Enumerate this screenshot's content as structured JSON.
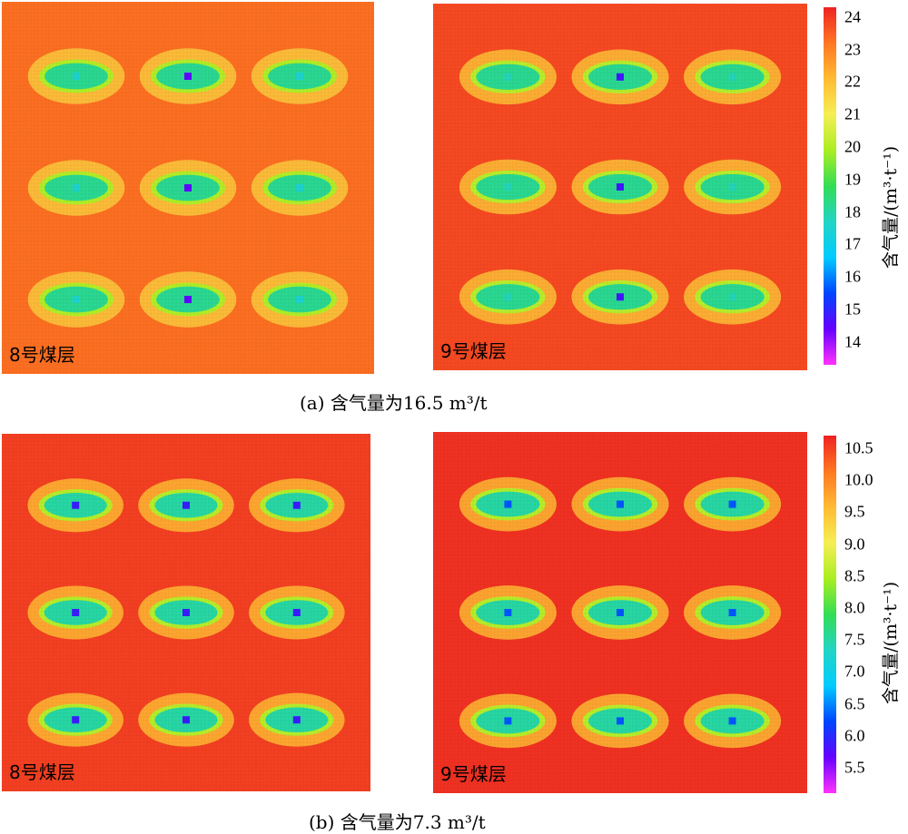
{
  "chart_data": [
    {
      "type": "heatmap",
      "panel": "a-left",
      "label": "8号煤层",
      "background_level": 23.3,
      "halo_level": 21.8,
      "ellipse_level": 18.2,
      "center_levels": [
        [
          17.5,
          14.5,
          17.5
        ],
        [
          17.5,
          14.5,
          17.5
        ],
        [
          17.5,
          14.5,
          17.5
        ]
      ],
      "value_range": [
        13.3,
        24.3
      ]
    },
    {
      "type": "heatmap",
      "panel": "a-right",
      "label": "9号煤层",
      "background_level": 23.8,
      "halo_level": 22.0,
      "ellipse_level": 18.2,
      "center_levels": [
        [
          17.8,
          14.8,
          17.8
        ],
        [
          17.8,
          14.8,
          17.8
        ],
        [
          17.8,
          14.8,
          17.8
        ]
      ],
      "value_range": [
        13.3,
        24.3
      ]
    },
    {
      "type": "heatmap",
      "panel": "b-left",
      "label": "8号煤层",
      "background_level": 10.5,
      "halo_level": 9.6,
      "ellipse_level": 7.5,
      "center_levels": [
        [
          5.9,
          5.9,
          5.9
        ],
        [
          5.9,
          5.9,
          5.9
        ],
        [
          5.9,
          5.9,
          5.9
        ]
      ],
      "value_range": [
        5.1,
        10.7
      ]
    },
    {
      "type": "heatmap",
      "panel": "b-right",
      "label": "9号煤层",
      "background_level": 10.6,
      "halo_level": 9.6,
      "ellipse_level": 7.5,
      "center_levels": [
        [
          6.3,
          6.3,
          6.3
        ],
        [
          6.3,
          6.3,
          6.3
        ],
        [
          6.3,
          6.3,
          6.3
        ]
      ],
      "value_range": [
        5.1,
        10.7
      ]
    }
  ],
  "colorbars": {
    "a": {
      "ticks": [
        "24",
        "23",
        "22",
        "21",
        "20",
        "19",
        "18",
        "17",
        "16",
        "15",
        "14"
      ],
      "tick_values": [
        24,
        23,
        22,
        21,
        20,
        19,
        18,
        17,
        16,
        15,
        14
      ],
      "range": [
        13.3,
        24.3
      ],
      "label": "含气量/(m³·t⁻¹)"
    },
    "b": {
      "ticks": [
        "10.5",
        "10.0",
        "9.5",
        "9.0",
        "8.5",
        "8.0",
        "7.5",
        "7.0",
        "6.5",
        "6.0",
        "5.5"
      ],
      "tick_values": [
        10.5,
        10.0,
        9.5,
        9.0,
        8.5,
        8.0,
        7.5,
        7.0,
        6.5,
        6.0,
        5.5
      ],
      "range": [
        5.1,
        10.7
      ],
      "label": "含气量/(m³·t⁻¹)"
    }
  },
  "colormap": [
    "#ff33ff",
    "#6600ff",
    "#0044ff",
    "#00ccff",
    "#22d4c4",
    "#33dd55",
    "#aaee22",
    "#f5ee55",
    "#ffbb33",
    "#ff7722",
    "#ee2222"
  ],
  "captions": {
    "a": "(a)  含气量为16.5 m³/t",
    "b": "(b)  含气量为7.3 m³/t"
  }
}
